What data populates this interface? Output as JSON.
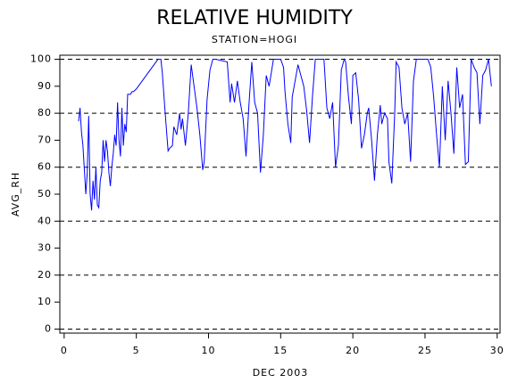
{
  "chart_data": {
    "type": "line",
    "title": "RELATIVE HUMIDITY",
    "subtitle": "STATION=HOGI",
    "x_label": "DEC 2003",
    "y_label": "AVG_RH",
    "xlim": [
      -0.3,
      30.2
    ],
    "ylim": [
      -1.5,
      101.5
    ],
    "xticks": [
      0,
      5,
      10,
      15,
      20,
      25,
      30
    ],
    "yticks": [
      0,
      10,
      20,
      30,
      40,
      50,
      60,
      70,
      80,
      90,
      100
    ],
    "ygrid": [
      0,
      20,
      40,
      60,
      80,
      100
    ],
    "x": [
      1.0,
      1.1,
      1.2,
      1.3,
      1.5,
      1.6,
      1.7,
      1.8,
      1.9,
      2.0,
      2.1,
      2.2,
      2.3,
      2.4,
      2.5,
      2.6,
      2.7,
      2.8,
      2.9,
      3.0,
      3.1,
      3.2,
      3.3,
      3.4,
      3.5,
      3.6,
      3.7,
      3.8,
      3.9,
      4.0,
      4.1,
      4.2,
      4.3,
      4.4,
      4.5,
      4.6,
      4.7,
      4.8,
      5.0,
      6.5,
      6.7,
      6.8,
      7.0,
      7.2,
      7.3,
      7.5,
      7.6,
      7.8,
      8.0,
      8.1,
      8.2,
      8.4,
      8.6,
      8.8,
      9.0,
      9.2,
      9.4,
      9.6,
      9.7,
      9.9,
      10.1,
      10.3,
      10.5,
      11.3,
      11.5,
      11.6,
      11.8,
      12.0,
      12.2,
      12.4,
      12.6,
      12.8,
      13.0,
      13.2,
      13.4,
      13.6,
      13.8,
      14.0,
      14.2,
      14.5,
      14.7,
      15.0,
      15.2,
      15.3,
      15.5,
      15.7,
      15.8,
      16.0,
      16.2,
      16.4,
      16.6,
      16.8,
      17.0,
      17.2,
      17.4,
      17.6,
      18.0,
      18.2,
      18.4,
      18.6,
      18.8,
      19.0,
      19.2,
      19.4,
      19.5,
      19.7,
      19.9,
      20.0,
      20.2,
      20.4,
      20.6,
      20.8,
      21.0,
      21.1,
      21.3,
      21.5,
      21.7,
      21.9,
      22.0,
      22.2,
      22.4,
      22.5,
      22.7,
      22.9,
      23.0,
      23.2,
      23.4,
      23.6,
      23.8,
      24.0,
      24.2,
      24.4,
      24.6,
      25.2,
      25.4,
      25.6,
      25.8,
      26.0,
      26.2,
      26.4,
      26.6,
      26.8,
      27.0,
      27.2,
      27.4,
      27.6,
      27.8,
      28.0,
      28.2,
      28.4,
      28.6,
      28.8,
      29.0,
      29.2,
      29.4,
      29.6
    ],
    "series": [
      {
        "name": "AVG_RH",
        "color": "#0000ff",
        "values": [
          77,
          82,
          73,
          68,
          50,
          58,
          79,
          50,
          44,
          55,
          48,
          60,
          46,
          45,
          55,
          58,
          70,
          62,
          70,
          66,
          58,
          53,
          60,
          65,
          72,
          68,
          84,
          70,
          64,
          82,
          68,
          76,
          73,
          87,
          87,
          87,
          88,
          88,
          89,
          100,
          100,
          95,
          80,
          66,
          67,
          68,
          75,
          72,
          80,
          74,
          78,
          68,
          80,
          98,
          90,
          82,
          72,
          59,
          62,
          85,
          96,
          100,
          100,
          99,
          84,
          91,
          84,
          92,
          84,
          78,
          64,
          83,
          99,
          84,
          80,
          58,
          72,
          94,
          90,
          100,
          100,
          100,
          97,
          88,
          76,
          69,
          86,
          92,
          98,
          94,
          90,
          81,
          69,
          86,
          100,
          100,
          100,
          82,
          78,
          84,
          60,
          68,
          96,
          100,
          99,
          86,
          76,
          94,
          95,
          85,
          67,
          72,
          80,
          82,
          70,
          55,
          72,
          83,
          76,
          80,
          78,
          62,
          54,
          80,
          99,
          97,
          82,
          76,
          80,
          62,
          92,
          100,
          100,
          100,
          97,
          86,
          72,
          60,
          90,
          70,
          92,
          80,
          65,
          97,
          82,
          87,
          61,
          62,
          100,
          97,
          95,
          76,
          94,
          96,
          100,
          90
        ]
      }
    ]
  }
}
